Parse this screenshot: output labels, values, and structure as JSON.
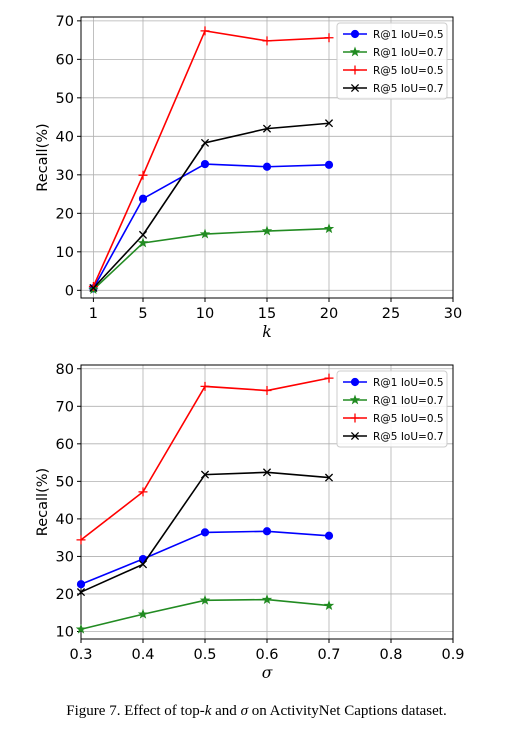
{
  "chart_data": [
    {
      "type": "line",
      "xlabel": "k",
      "ylabel": "Recall(%)",
      "xlim": [
        0,
        30
      ],
      "ylim": [
        -2,
        71
      ],
      "xticks": [
        1,
        5,
        10,
        15,
        20,
        25,
        30
      ],
      "yticks": [
        0,
        10,
        20,
        30,
        40,
        50,
        60,
        70
      ],
      "grid": true,
      "legend_position": "top-right",
      "x": [
        1,
        5,
        10,
        15,
        20
      ],
      "series": [
        {
          "name": "R@1 IoU=0.5",
          "color": "#0000ff",
          "marker": "circle",
          "values": [
            0.5,
            23.8,
            32.8,
            32.1,
            32.6
          ]
        },
        {
          "name": "R@1 IoU=0.7",
          "color": "#228b22",
          "marker": "star",
          "values": [
            0.2,
            12.3,
            14.6,
            15.4,
            16.0
          ]
        },
        {
          "name": "R@5 IoU=0.5",
          "color": "#ff0000",
          "marker": "plus",
          "values": [
            1.0,
            29.9,
            67.4,
            64.8,
            65.6
          ]
        },
        {
          "name": "R@5 IoU=0.7",
          "color": "#000000",
          "marker": "x",
          "values": [
            0.6,
            14.4,
            38.3,
            42.0,
            43.4
          ]
        }
      ]
    },
    {
      "type": "line",
      "xlabel": "σ",
      "ylabel": "Recall(%)",
      "xlim": [
        0.3,
        0.9
      ],
      "ylim": [
        8,
        81
      ],
      "xticks": [
        0.3,
        0.4,
        0.5,
        0.6,
        0.7,
        0.8,
        0.9
      ],
      "yticks": [
        10,
        20,
        30,
        40,
        50,
        60,
        70,
        80
      ],
      "grid": true,
      "legend_position": "top-right",
      "x": [
        0.3,
        0.4,
        0.5,
        0.6,
        0.7
      ],
      "series": [
        {
          "name": "R@1 IoU=0.5",
          "color": "#0000ff",
          "marker": "circle",
          "values": [
            22.6,
            29.3,
            36.4,
            36.7,
            35.5
          ]
        },
        {
          "name": "R@1 IoU=0.7",
          "color": "#228b22",
          "marker": "star",
          "values": [
            10.6,
            14.6,
            18.3,
            18.5,
            16.9
          ]
        },
        {
          "name": "R@5 IoU=0.5",
          "color": "#ff0000",
          "marker": "plus",
          "values": [
            34.4,
            47.2,
            75.3,
            74.2,
            77.5
          ]
        },
        {
          "name": "R@5 IoU=0.7",
          "color": "#000000",
          "marker": "x",
          "values": [
            20.5,
            27.9,
            51.8,
            52.4,
            51.0
          ]
        }
      ]
    }
  ],
  "caption": {
    "prefix": "Figure 7. Effect of top-",
    "k": "k",
    "mid": " and ",
    "sigma": "σ",
    "suffix": " on ActivityNet Captions dataset."
  }
}
